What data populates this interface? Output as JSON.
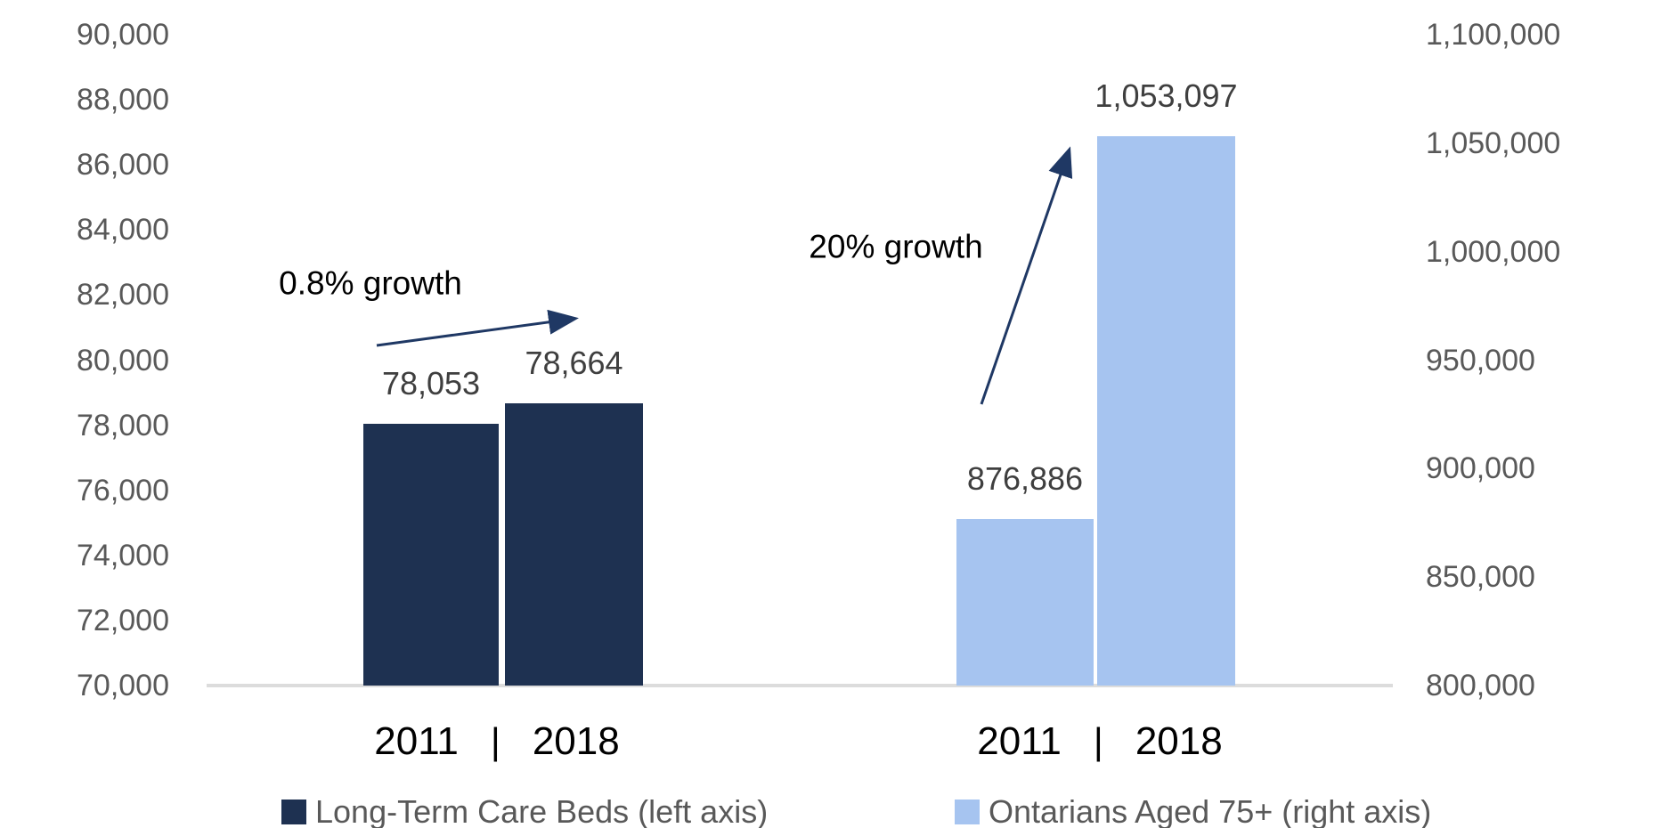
{
  "chart_data": {
    "type": "bar",
    "title": "",
    "x_tick_divider": "|",
    "left_axis": {
      "min": 70000,
      "max": 90000,
      "step": 2000,
      "tick_labels": [
        "90,000",
        "88,000",
        "86,000",
        "84,000",
        "82,000",
        "80,000",
        "78,000",
        "76,000",
        "74,000",
        "72,000",
        "70,000"
      ]
    },
    "right_axis": {
      "min": 800000,
      "max": 1100000,
      "step": 50000,
      "tick_labels": [
        "1,100,000",
        "1,050,000",
        "1,000,000",
        "950,000",
        "900,000",
        "850,000",
        "800,000"
      ]
    },
    "series": [
      {
        "name": "Long-Term Care Beds (left axis)",
        "axis": "left",
        "color": "#1E3151",
        "categories": [
          "2011",
          "2018"
        ],
        "values": [
          78053,
          78664
        ],
        "value_labels": [
          "78,053",
          "78,664"
        ],
        "annotation": "0.8% growth"
      },
      {
        "name": "Ontarians Aged 75+ (right axis)",
        "axis": "right",
        "color": "#A6C4F0",
        "categories": [
          "2011",
          "2018"
        ],
        "values": [
          876886,
          1053097
        ],
        "value_labels": [
          "876,886",
          "1,053,097"
        ],
        "annotation": "20% growth"
      }
    ],
    "legend": [
      {
        "label": "Long-Term Care Beds (left axis)",
        "color": "#1E3151"
      },
      {
        "label": "Ontarians Aged 75+ (right axis)",
        "color": "#A6C4F0"
      }
    ],
    "colors": {
      "arrow": "#1F3864",
      "tick_text": "#595959",
      "value_label_text": "#3F3F3F",
      "year_text": "#000000",
      "baseline": "#DCDCDC"
    },
    "layout_hints": {
      "grid": false,
      "legend_position": "bottom",
      "dual_axis": true
    }
  }
}
